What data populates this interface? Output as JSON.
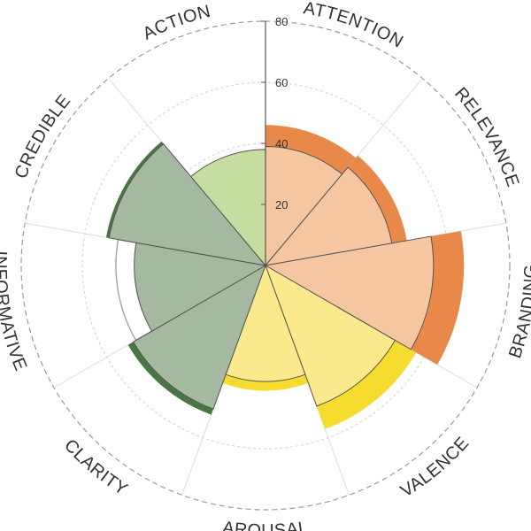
{
  "chart_data": {
    "type": "polar-area",
    "title": "",
    "r_ticks": [
      20,
      40,
      60,
      80
    ],
    "r_max": 80,
    "grid": true,
    "categories": [
      "ATTENTION",
      "RELEVANCE",
      "BRANDING",
      "VALENCE",
      "AROUSAL",
      "CLARITY",
      "INFORMATIVE",
      "CREDIBLE",
      "ACTION"
    ],
    "series": [
      {
        "values": [
          39,
          42,
          55,
          49,
          38,
          50,
          43,
          52,
          38
        ]
      },
      {
        "values": [
          46,
          47,
          65,
          57,
          41,
          52,
          49,
          53,
          null
        ]
      }
    ],
    "colors": {
      "inner": [
        "#f5c6a0",
        "#f5c6a0",
        "#f5c6a0",
        "#fbea8c",
        "#fbea8c",
        "#a5b8a0",
        "#a5b8a0",
        "#a5b8a0",
        "#c6dca0"
      ],
      "outer": [
        "#e8894a",
        "#e8894a",
        "#e8894a",
        "#f6dc2e",
        "#f6dc2e",
        "#4a7545",
        "#a8a8a8",
        "#4a7545",
        null
      ],
      "border": "#555555"
    }
  }
}
